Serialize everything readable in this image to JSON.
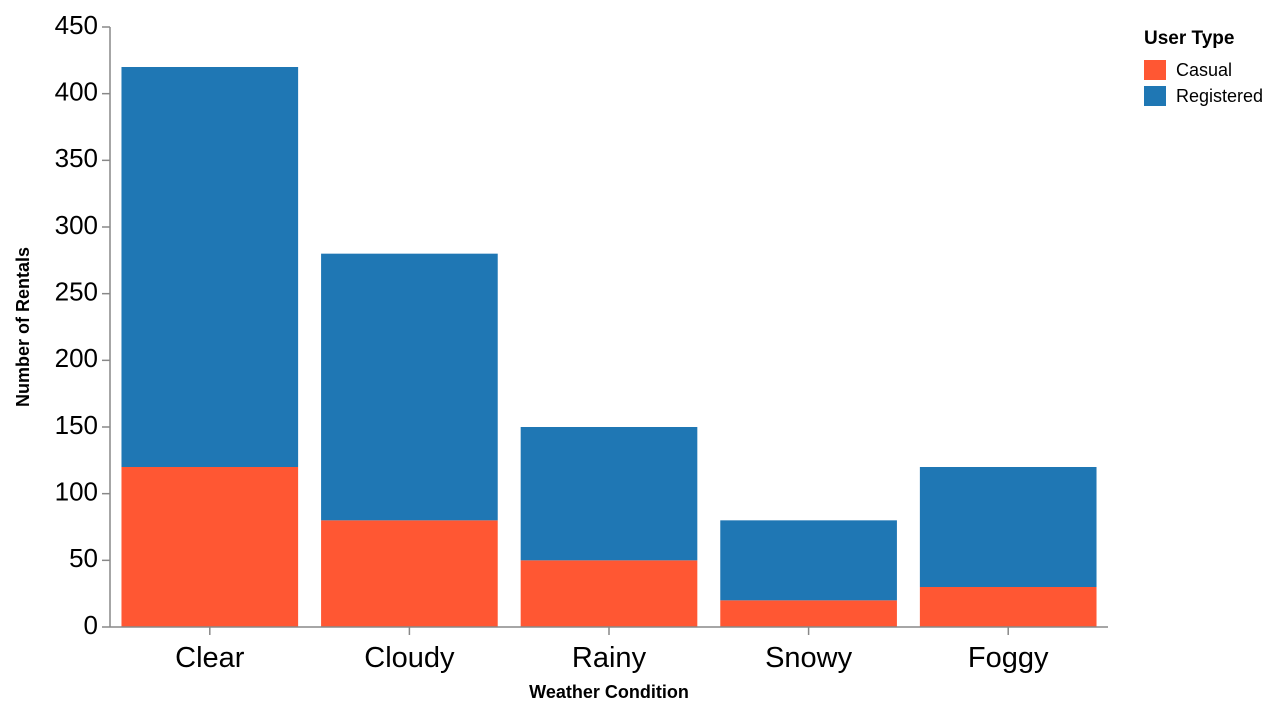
{
  "chart_data": {
    "type": "bar",
    "stacked": true,
    "categories": [
      "Clear",
      "Cloudy",
      "Rainy",
      "Snowy",
      "Foggy"
    ],
    "series": [
      {
        "name": "Casual",
        "values": [
          120,
          80,
          50,
          20,
          30
        ],
        "color": "#ff5733"
      },
      {
        "name": "Registered",
        "values": [
          300,
          200,
          100,
          60,
          90
        ],
        "color": "#1f77b4"
      }
    ],
    "xlabel": "Weather Condition",
    "ylabel": "Number of Rentals",
    "ylim": [
      0,
      450
    ],
    "yticks": [
      0,
      50,
      100,
      150,
      200,
      250,
      300,
      350,
      400,
      450
    ],
    "grid": false,
    "legend": {
      "title": "User Type",
      "placement": "top-right"
    }
  }
}
